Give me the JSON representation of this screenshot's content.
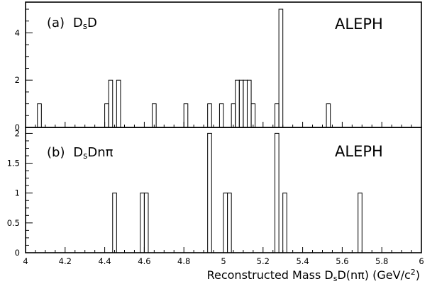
{
  "chart_data": [
    {
      "type": "bar",
      "panel_label": "(a)",
      "channel": {
        "main": "D",
        "sub": "s",
        "rest": "D"
      },
      "experiment": "ALEPH",
      "bin_width": 0.02,
      "xlim": [
        4,
        6
      ],
      "ylim": [
        0,
        5.3
      ],
      "yticks": [
        0,
        2,
        4
      ],
      "bins": [
        {
          "x": 4.06,
          "count": 1
        },
        {
          "x": 4.4,
          "count": 1
        },
        {
          "x": 4.42,
          "count": 2
        },
        {
          "x": 4.46,
          "count": 2
        },
        {
          "x": 4.64,
          "count": 1
        },
        {
          "x": 4.8,
          "count": 1
        },
        {
          "x": 4.92,
          "count": 1
        },
        {
          "x": 4.98,
          "count": 1
        },
        {
          "x": 5.04,
          "count": 1
        },
        {
          "x": 5.06,
          "count": 2
        },
        {
          "x": 5.08,
          "count": 2
        },
        {
          "x": 5.1,
          "count": 2
        },
        {
          "x": 5.12,
          "count": 2
        },
        {
          "x": 5.14,
          "count": 1
        },
        {
          "x": 5.26,
          "count": 1
        },
        {
          "x": 5.28,
          "count": 5
        },
        {
          "x": 5.52,
          "count": 1
        }
      ]
    },
    {
      "type": "bar",
      "panel_label": "(b)",
      "channel": {
        "main": "D",
        "sub": "s",
        "rest": "Dnπ"
      },
      "experiment": "ALEPH",
      "bin_width": 0.02,
      "xlim": [
        4,
        6
      ],
      "ylim": [
        0,
        2.1
      ],
      "yticks": [
        0,
        0.5,
        1,
        1.5,
        2
      ],
      "xticks": [
        4,
        4.2,
        4.4,
        4.6,
        4.8,
        5,
        5.2,
        5.4,
        5.6,
        5.8,
        6
      ],
      "xlabel": {
        "pre": "Reconstructed Mass D",
        "sub": "s",
        "mid": "D(nπ)  (GeV/c",
        "sup": "2",
        "post": ")"
      },
      "bins": [
        {
          "x": 4.44,
          "count": 1
        },
        {
          "x": 4.58,
          "count": 1
        },
        {
          "x": 4.6,
          "count": 1
        },
        {
          "x": 4.92,
          "count": 2
        },
        {
          "x": 5.0,
          "count": 1
        },
        {
          "x": 5.02,
          "count": 1
        },
        {
          "x": 5.26,
          "count": 2
        },
        {
          "x": 5.3,
          "count": 1
        },
        {
          "x": 5.68,
          "count": 1
        }
      ]
    }
  ]
}
